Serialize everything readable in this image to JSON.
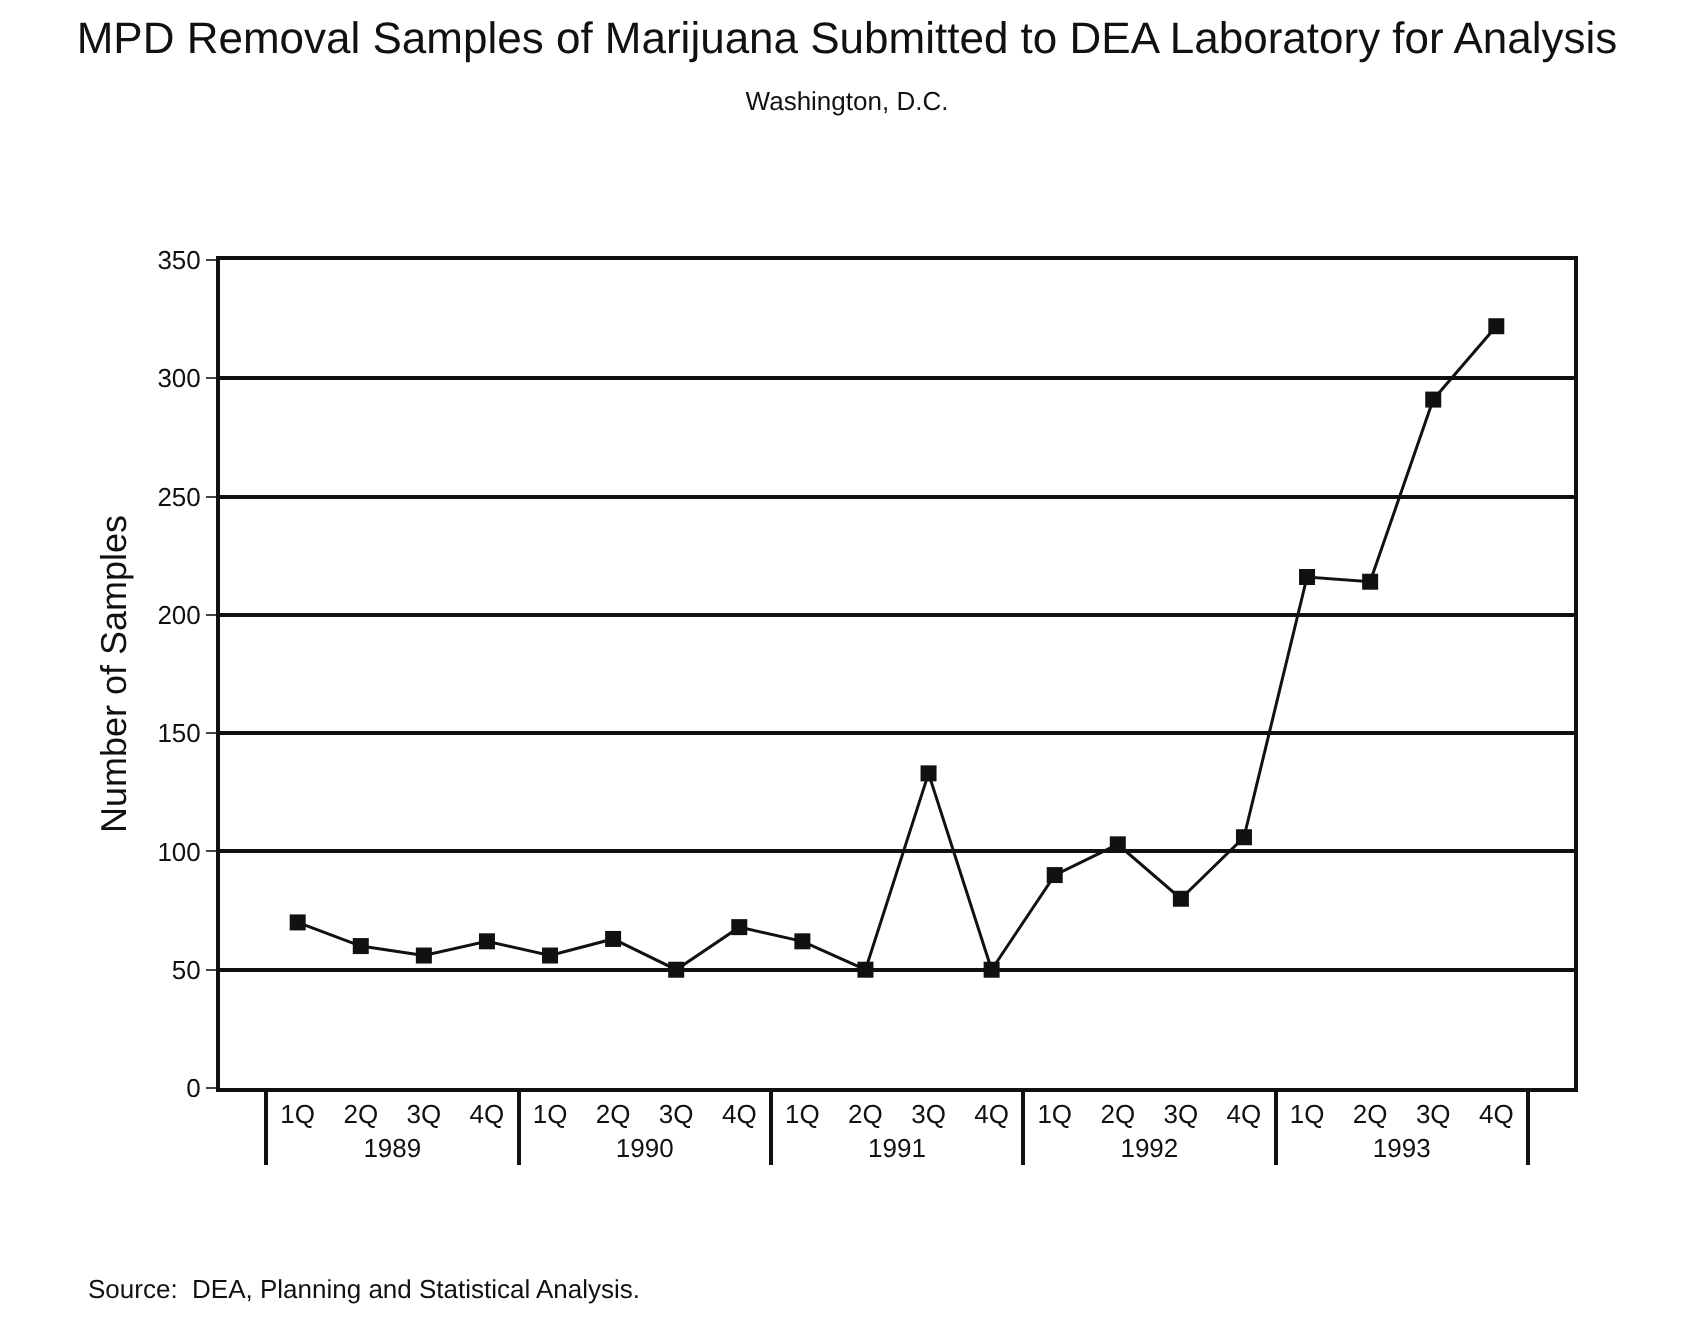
{
  "chart_data": {
    "type": "line",
    "title": "MPD Removal Samples of Marijuana Submitted to DEA Laboratory for Analysis",
    "subtitle": "Washington, D.C.",
    "ylabel": "Number of Samples",
    "categories": [
      "1Q",
      "2Q",
      "3Q",
      "4Q",
      "1Q",
      "2Q",
      "3Q",
      "4Q",
      "1Q",
      "2Q",
      "3Q",
      "4Q",
      "1Q",
      "2Q",
      "3Q",
      "4Q",
      "1Q",
      "2Q",
      "3Q",
      "4Q"
    ],
    "values": [
      70,
      60,
      56,
      62,
      56,
      63,
      50,
      68,
      62,
      50,
      133,
      50,
      90,
      103,
      80,
      106,
      216,
      214,
      291,
      322
    ],
    "color": "#111111",
    "marker": "square",
    "line_style": "solid",
    "grid": "y",
    "legend": false,
    "ylim": [
      0,
      350
    ],
    "yticks": [
      0,
      50,
      100,
      150,
      200,
      250,
      300,
      350
    ],
    "annotations": [
      "1989",
      "1990",
      "1991",
      "1992",
      "1993",
      "Source:  DEA, Planning and Statistical Analysis."
    ]
  }
}
